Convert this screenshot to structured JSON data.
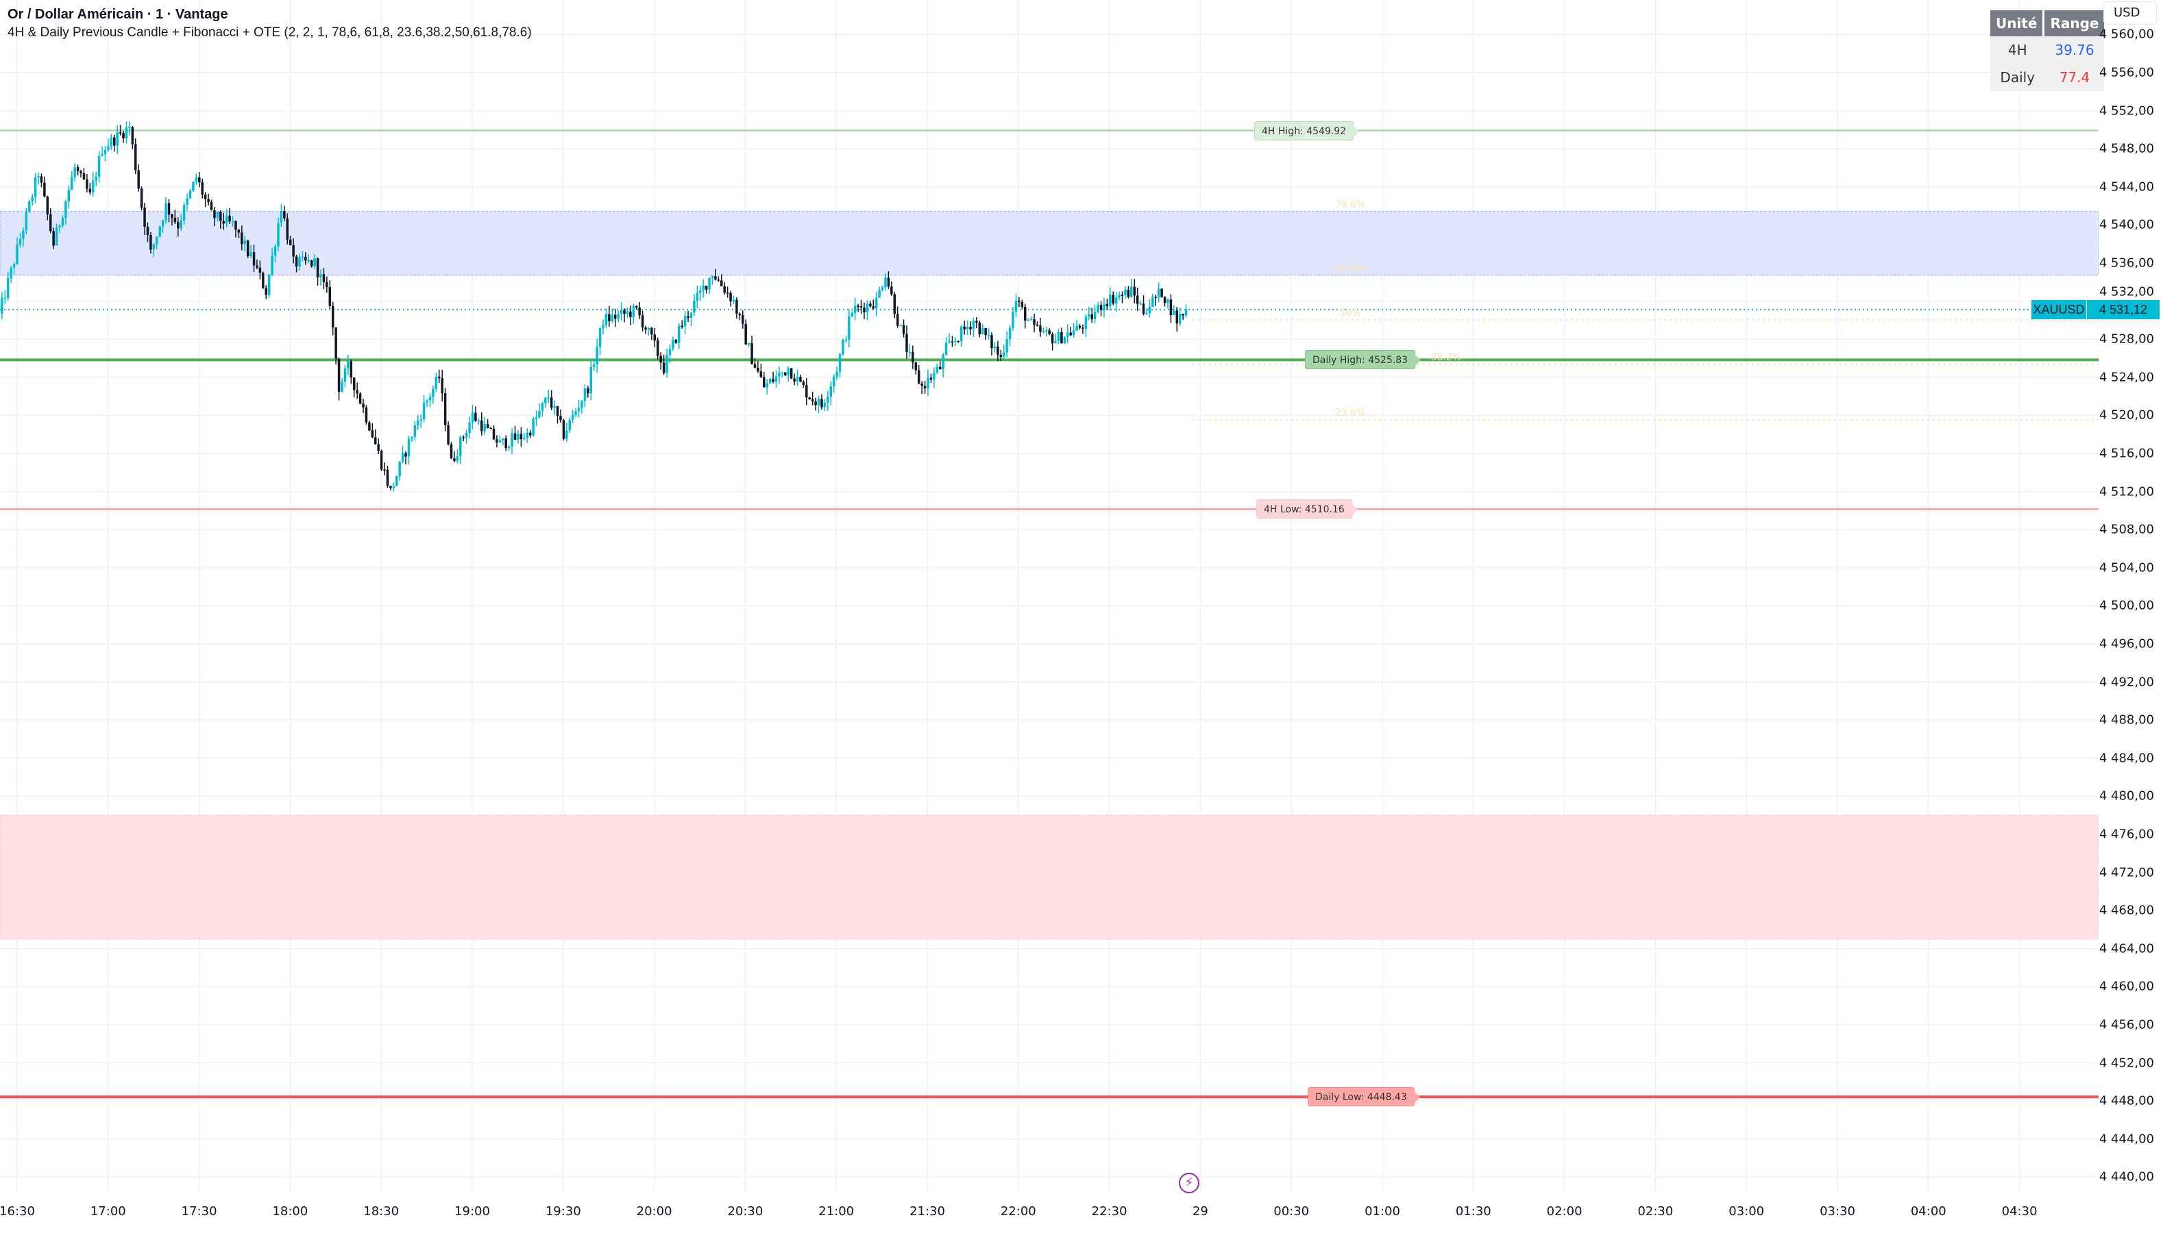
{
  "header": {
    "title": "Or / Dollar Américain · 1 · Vantage",
    "indicator": "4H & Daily Previous Candle + Fibonacci + OTE (2, 2, 1, 78,6, 61,8, 23.6,38.2,50,61.8,78.6)"
  },
  "range_table": {
    "headers": [
      "Unité",
      "Range"
    ],
    "rows": [
      {
        "unit": "4H",
        "range": "39.76",
        "color": "#2962ff"
      },
      {
        "unit": "Daily",
        "range": "77.4",
        "color": "#f23645"
      }
    ]
  },
  "currency": "USD",
  "symbol_badge": {
    "symbol": "XAUUSD",
    "price": "4 531,12",
    "value": 4531.12,
    "color": "#00bcd4"
  },
  "price_axis": {
    "labels": [
      "4 560,00",
      "4 556,00",
      "4 552,00",
      "4 548,00",
      "4 544,00",
      "4 540,00",
      "4 536,00",
      "4 532,00",
      "4 528,00",
      "4 524,00",
      "4 520,00",
      "4 516,00",
      "4 512,00",
      "4 508,00",
      "4 504,00",
      "4 500,00",
      "4 496,00",
      "4 492,00",
      "4 488,00",
      "4 484,00",
      "4 480,00",
      "4 476,00",
      "4 472,00",
      "4 468,00",
      "4 464,00",
      "4 460,00",
      "4 456,00",
      "4 452,00",
      "4 448,00",
      "4 444,00",
      "4 440,00"
    ],
    "values": [
      4560,
      4556,
      4552,
      4548,
      4544,
      4540,
      4536,
      4532,
      4528,
      4524,
      4520,
      4516,
      4512,
      4508,
      4504,
      4500,
      4496,
      4492,
      4488,
      4484,
      4480,
      4476,
      4472,
      4468,
      4464,
      4460,
      4456,
      4452,
      4448,
      4444,
      4440
    ]
  },
  "time_axis": {
    "labels": [
      "16:30",
      "17:00",
      "17:30",
      "18:00",
      "18:30",
      "19:00",
      "19:30",
      "20:00",
      "20:30",
      "21:00",
      "21:30",
      "22:00",
      "22:30",
      "29",
      "00:30",
      "01:00",
      "01:30",
      "02:00",
      "02:30",
      "03:00",
      "03:30",
      "04:00",
      "04:30"
    ]
  },
  "levels": [
    {
      "id": "4h-high",
      "label": "4H High: 4549.92",
      "price": 4549.92,
      "line_color": "#a5d6a7",
      "fill": "#dcefdc",
      "border": "#b9deb9",
      "weight": "thin"
    },
    {
      "id": "daily-high",
      "label": "Daily High: 4525.83",
      "price": 4525.83,
      "line_color": "#4caf50",
      "fill": "#a5d6a7",
      "border": "#81c784",
      "weight": "thick"
    },
    {
      "id": "4h-low",
      "label": "4H Low: 4510.16",
      "price": 4510.16,
      "line_color": "#ff9e9e",
      "fill": "#ffd6d6",
      "border": "#ffc2c2",
      "weight": "thin"
    },
    {
      "id": "daily-low",
      "label": "Daily Low: 4448.43",
      "price": 4448.43,
      "line_color": "#ff5252",
      "fill": "#ffa6a6",
      "border": "#ff8a8a",
      "weight": "thick"
    }
  ],
  "fibonacci": {
    "high": 4549.92,
    "low": 4510.16,
    "levels": [
      {
        "ratio": 0.786,
        "label": "78.6%"
      },
      {
        "ratio": 0.618,
        "label": "61.8%"
      },
      {
        "ratio": 0.5,
        "label": "50%"
      },
      {
        "ratio": 0.382,
        "label": "38.2%"
      },
      {
        "ratio": 0.236,
        "label": "23.6%"
      }
    ],
    "color": "#ffe0b2"
  },
  "zones": [
    {
      "id": "ote-4h",
      "top": 4541.41,
      "bottom": 4534.73,
      "color": "#e0e7fd",
      "edge": "#aebcf2"
    },
    {
      "id": "ote-daily",
      "top": 4478.0,
      "bottom": 4465.0,
      "color": "#ffe1e3",
      "edge": "#ffd0d4"
    }
  ],
  "candles": {
    "up_color": "#00bcd4",
    "down_color": "#131722",
    "path": [
      [
        "16:24",
        4530.5
      ],
      [
        "16:37",
        4545.5
      ],
      [
        "16:42",
        4538
      ],
      [
        "16:49",
        4546
      ],
      [
        "16:54",
        4543
      ],
      [
        "16:58",
        4548
      ],
      [
        "17:07",
        4550.3
      ],
      [
        "17:11",
        4542
      ],
      [
        "17:14",
        4537
      ],
      [
        "17:19",
        4542
      ],
      [
        "17:23",
        4540
      ],
      [
        "17:29",
        4545
      ],
      [
        "17:34",
        4541
      ],
      [
        "17:41",
        4540
      ],
      [
        "17:48",
        4536
      ],
      [
        "17:52",
        4533
      ],
      [
        "17:57",
        4542
      ],
      [
        "18:01",
        4536
      ],
      [
        "18:08",
        4536
      ],
      [
        "18:13",
        4532
      ],
      [
        "18:16",
        4523
      ],
      [
        "18:19",
        4525
      ],
      [
        "18:26",
        4519
      ],
      [
        "18:33",
        4512
      ],
      [
        "18:40",
        4518
      ],
      [
        "18:44",
        4521
      ],
      [
        "18:49",
        4524
      ],
      [
        "18:53",
        4515
      ],
      [
        "19:00",
        4520
      ],
      [
        "19:09",
        4517
      ],
      [
        "19:18",
        4518
      ],
      [
        "19:25",
        4522
      ],
      [
        "19:30",
        4518
      ],
      [
        "19:38",
        4523
      ],
      [
        "19:43",
        4530
      ],
      [
        "19:54",
        4531
      ],
      [
        "19:59",
        4528
      ],
      [
        "20:03",
        4525
      ],
      [
        "20:08",
        4529
      ],
      [
        "20:19",
        4535
      ],
      [
        "20:26",
        4532
      ],
      [
        "20:32",
        4526
      ],
      [
        "20:36",
        4523
      ],
      [
        "20:44",
        4525
      ],
      [
        "20:51",
        4522
      ],
      [
        "20:55",
        4521
      ],
      [
        "21:00",
        4525
      ],
      [
        "21:05",
        4531
      ],
      [
        "21:13",
        4532
      ],
      [
        "21:16",
        4535
      ],
      [
        "21:20",
        4530
      ],
      [
        "21:25",
        4525
      ],
      [
        "21:28",
        4523
      ],
      [
        "21:34",
        4525
      ],
      [
        "21:36",
        4527
      ],
      [
        "21:45",
        4530
      ],
      [
        "21:52",
        4527
      ],
      [
        "21:54",
        4526
      ],
      [
        "21:59",
        4532
      ],
      [
        "22:05",
        4529
      ],
      [
        "22:12",
        4528
      ],
      [
        "22:19",
        4529
      ],
      [
        "22:23",
        4530
      ],
      [
        "22:28",
        4532
      ],
      [
        "22:37",
        4533
      ],
      [
        "22:41",
        4531
      ],
      [
        "22:47",
        4533
      ],
      [
        "22:52",
        4530
      ],
      [
        "22:55",
        4531.12
      ]
    ]
  },
  "grid": true,
  "grid_color": "#f0f3fa"
}
